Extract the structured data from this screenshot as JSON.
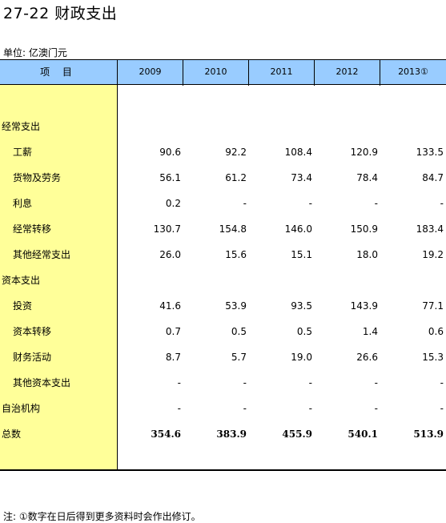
{
  "title": "27-22   财政支出",
  "unit": "单位: 亿澳门元",
  "header": {
    "label": "项 目",
    "years": [
      "2009",
      "2010",
      "2011",
      "2012",
      "2013①"
    ]
  },
  "rows": [
    {
      "name": "经常支出",
      "level": 0,
      "values": [
        "",
        "",
        "",
        "",
        ""
      ]
    },
    {
      "name": "工薪",
      "level": 1,
      "values": [
        "90.6",
        "92.2",
        "108.4",
        "120.9",
        "133.5"
      ]
    },
    {
      "name": "货物及劳务",
      "level": 1,
      "values": [
        "56.1",
        "61.2",
        "73.4",
        "78.4",
        "84.7"
      ]
    },
    {
      "name": "利息",
      "level": 1,
      "values": [
        "0.2",
        "-",
        "-",
        "-",
        "-"
      ]
    },
    {
      "name": "经常转移",
      "level": 1,
      "values": [
        "130.7",
        "154.8",
        "146.0",
        "150.9",
        "183.4"
      ]
    },
    {
      "name": "其他经常支出",
      "level": 1,
      "values": [
        "26.0",
        "15.6",
        "15.1",
        "18.0",
        "19.2"
      ]
    },
    {
      "name": "资本支出",
      "level": 0,
      "values": [
        "",
        "",
        "",
        "",
        ""
      ]
    },
    {
      "name": "投资",
      "level": 1,
      "values": [
        "41.6",
        "53.9",
        "93.5",
        "143.9",
        "77.1"
      ]
    },
    {
      "name": "资本转移",
      "level": 1,
      "values": [
        "0.7",
        "0.5",
        "0.5",
        "1.4",
        "0.6"
      ]
    },
    {
      "name": "财务活动",
      "level": 1,
      "values": [
        "8.7",
        "5.7",
        "19.0",
        "26.6",
        "15.3"
      ]
    },
    {
      "name": "其他资本支出",
      "level": 1,
      "values": [
        "-",
        "-",
        "-",
        "-",
        "-"
      ]
    },
    {
      "name": "自治机构",
      "level": 0,
      "values": [
        "-",
        "-",
        "-",
        "-",
        "-"
      ]
    },
    {
      "name": "总数",
      "level": 0,
      "total": true,
      "values": [
        "354.6",
        "383.9",
        "455.9",
        "540.1",
        "513.9"
      ]
    }
  ],
  "note": "注: ①数字在日后得到更多资料时会作出修订。"
}
